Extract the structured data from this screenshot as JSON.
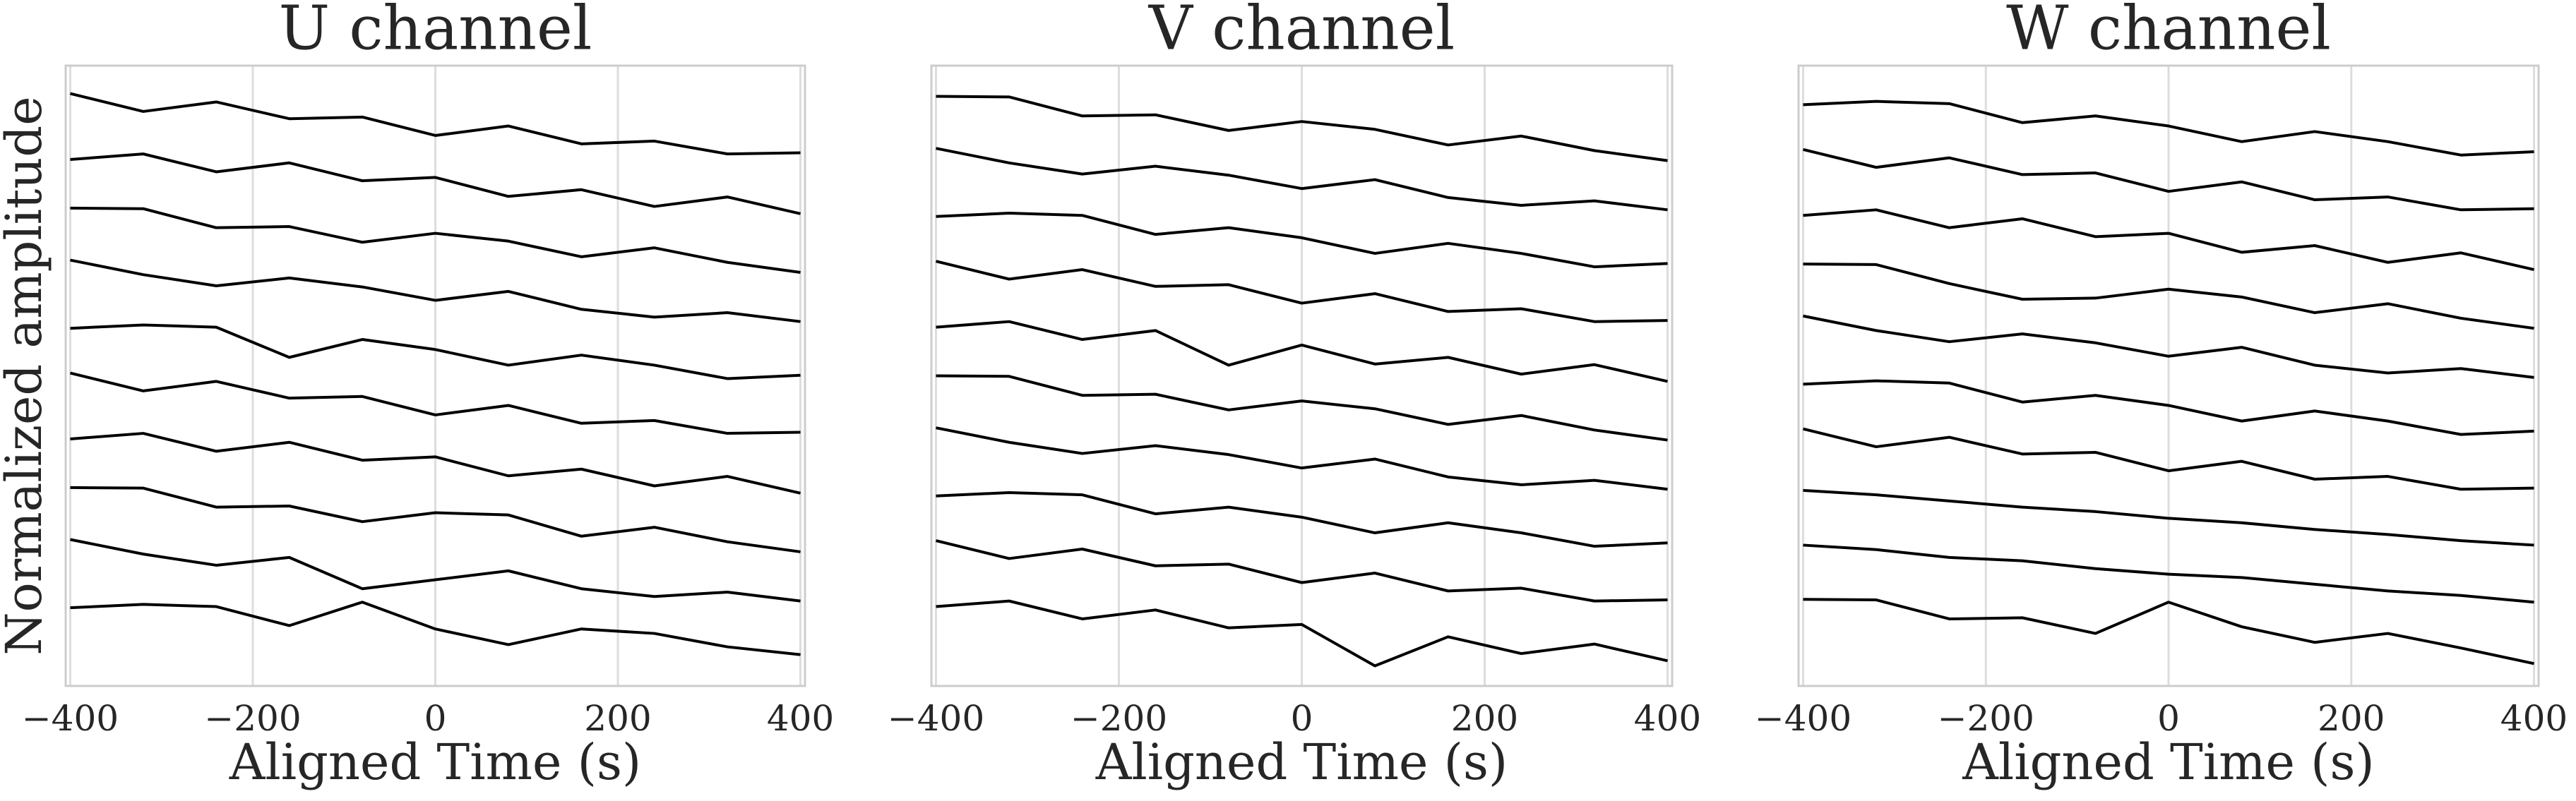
{
  "chart_data": [
    {
      "type": "line",
      "title": "U channel",
      "xlabel": "Aligned Time (s)",
      "ylabel": "Normalized amplitude",
      "x": [
        -400,
        -320,
        -240,
        -160,
        -80,
        0,
        80,
        160,
        240,
        320,
        400
      ],
      "xlim": [
        -405,
        405
      ],
      "ylim": [
        -1.0,
        10.1
      ],
      "xticks": [
        {
          "value": -400,
          "label": "−400"
        },
        {
          "value": -200,
          "label": "−200"
        },
        0,
        200,
        400
      ],
      "grid": true,
      "series": [
        {
          "color": "#000000",
          "values": [
            9.6,
            9.28,
            9.45,
            9.15,
            9.18,
            8.85,
            9.02,
            8.7,
            8.75,
            8.52,
            8.54
          ]
        },
        {
          "color": "#000000",
          "values": [
            8.42,
            8.52,
            8.2,
            8.36,
            8.04,
            8.1,
            7.76,
            7.88,
            7.58,
            7.75,
            7.45
          ]
        },
        {
          "color": "#000000",
          "values": [
            7.55,
            7.54,
            7.2,
            7.22,
            6.94,
            7.1,
            6.96,
            6.68,
            6.84,
            6.58,
            6.4
          ]
        },
        {
          "color": "#000000",
          "values": [
            6.62,
            6.36,
            6.16,
            6.3,
            6.14,
            5.9,
            6.06,
            5.74,
            5.6,
            5.68,
            5.52
          ]
        },
        {
          "color": "#000000",
          "values": [
            5.4,
            5.46,
            5.42,
            4.88,
            5.2,
            5.02,
            4.74,
            4.92,
            4.74,
            4.5,
            4.56
          ]
        },
        {
          "color": "#000000",
          "values": [
            4.6,
            4.28,
            4.45,
            4.15,
            4.18,
            3.85,
            4.02,
            3.7,
            3.75,
            3.52,
            3.54
          ]
        },
        {
          "color": "#000000",
          "values": [
            3.42,
            3.52,
            3.2,
            3.36,
            3.04,
            3.1,
            2.76,
            2.88,
            2.58,
            2.75,
            2.45
          ]
        },
        {
          "color": "#000000",
          "values": [
            2.55,
            2.54,
            2.2,
            2.22,
            1.94,
            2.1,
            2.06,
            1.68,
            1.84,
            1.58,
            1.4
          ]
        },
        {
          "color": "#000000",
          "values": [
            1.62,
            1.36,
            1.16,
            1.3,
            0.74,
            0.9,
            1.06,
            0.74,
            0.6,
            0.68,
            0.52
          ]
        },
        {
          "color": "#000000",
          "values": [
            0.4,
            0.46,
            0.42,
            0.08,
            0.5,
            0.02,
            -0.26,
            0.02,
            -0.06,
            -0.3,
            -0.44
          ]
        }
      ]
    },
    {
      "type": "line",
      "title": "V channel",
      "xlabel": "Aligned Time (s)",
      "x": [
        -400,
        -320,
        -240,
        -160,
        -80,
        0,
        80,
        160,
        240,
        320,
        400
      ],
      "xlim": [
        -405,
        405
      ],
      "ylim": [
        -1.0,
        10.1
      ],
      "xticks": [
        {
          "value": -400,
          "label": "−400"
        },
        {
          "value": -200,
          "label": "−200"
        },
        0,
        200,
        400
      ],
      "grid": true,
      "series": [
        {
          "color": "#000000",
          "values": [
            9.55,
            9.54,
            9.2,
            9.22,
            8.94,
            9.1,
            8.96,
            8.68,
            8.84,
            8.58,
            8.4
          ]
        },
        {
          "color": "#000000",
          "values": [
            8.62,
            8.36,
            8.16,
            8.3,
            8.14,
            7.9,
            8.06,
            7.74,
            7.6,
            7.68,
            7.52
          ]
        },
        {
          "color": "#000000",
          "values": [
            7.4,
            7.46,
            7.42,
            7.08,
            7.2,
            7.02,
            6.74,
            6.92,
            6.74,
            6.5,
            6.56
          ]
        },
        {
          "color": "#000000",
          "values": [
            6.6,
            6.28,
            6.45,
            6.15,
            6.18,
            5.85,
            6.02,
            5.7,
            5.75,
            5.52,
            5.54
          ]
        },
        {
          "color": "#000000",
          "values": [
            5.42,
            5.52,
            5.2,
            5.36,
            4.74,
            5.1,
            4.76,
            4.88,
            4.58,
            4.75,
            4.45
          ]
        },
        {
          "color": "#000000",
          "values": [
            4.55,
            4.54,
            4.2,
            4.22,
            3.94,
            4.1,
            3.96,
            3.68,
            3.84,
            3.58,
            3.4
          ]
        },
        {
          "color": "#000000",
          "values": [
            3.62,
            3.36,
            3.16,
            3.3,
            3.14,
            2.9,
            3.06,
            2.74,
            2.6,
            2.68,
            2.52
          ]
        },
        {
          "color": "#000000",
          "values": [
            2.4,
            2.46,
            2.42,
            2.08,
            2.2,
            2.02,
            1.74,
            1.92,
            1.74,
            1.5,
            1.56
          ]
        },
        {
          "color": "#000000",
          "values": [
            1.6,
            1.28,
            1.45,
            1.15,
            1.18,
            0.85,
            1.02,
            0.7,
            0.75,
            0.52,
            0.54
          ]
        },
        {
          "color": "#000000",
          "values": [
            0.42,
            0.52,
            0.2,
            0.36,
            0.04,
            0.1,
            -0.64,
            -0.12,
            -0.42,
            -0.25,
            -0.55
          ]
        }
      ]
    },
    {
      "type": "line",
      "title": "W channel",
      "xlabel": "Aligned Time (s)",
      "x": [
        -400,
        -320,
        -240,
        -160,
        -80,
        0,
        80,
        160,
        240,
        320,
        400
      ],
      "xlim": [
        -405,
        405
      ],
      "ylim": [
        -1.0,
        10.1
      ],
      "xticks": [
        {
          "value": -400,
          "label": "−400"
        },
        {
          "value": -200,
          "label": "−200"
        },
        0,
        200,
        400
      ],
      "grid": true,
      "series": [
        {
          "color": "#000000",
          "values": [
            9.4,
            9.46,
            9.42,
            9.08,
            9.2,
            9.02,
            8.74,
            8.92,
            8.74,
            8.5,
            8.56
          ]
        },
        {
          "color": "#000000",
          "values": [
            8.6,
            8.28,
            8.45,
            8.15,
            8.18,
            7.85,
            8.02,
            7.7,
            7.75,
            7.52,
            7.54
          ]
        },
        {
          "color": "#000000",
          "values": [
            7.42,
            7.52,
            7.2,
            7.36,
            7.04,
            7.1,
            6.76,
            6.88,
            6.58,
            6.75,
            6.45
          ]
        },
        {
          "color": "#000000",
          "values": [
            6.55,
            6.54,
            6.2,
            5.92,
            5.94,
            6.1,
            5.96,
            5.68,
            5.84,
            5.58,
            5.4
          ]
        },
        {
          "color": "#000000",
          "values": [
            5.62,
            5.36,
            5.16,
            5.3,
            5.14,
            4.9,
            5.06,
            4.74,
            4.6,
            4.68,
            4.52
          ]
        },
        {
          "color": "#000000",
          "values": [
            4.4,
            4.46,
            4.42,
            4.08,
            4.2,
            4.02,
            3.74,
            3.92,
            3.74,
            3.5,
            3.56
          ]
        },
        {
          "color": "#000000",
          "values": [
            3.6,
            3.28,
            3.45,
            3.15,
            3.18,
            2.85,
            3.02,
            2.7,
            2.75,
            2.52,
            2.54
          ]
        },
        {
          "color": "#000000",
          "values": [
            2.5,
            2.42,
            2.31,
            2.2,
            2.12,
            2.0,
            1.92,
            1.8,
            1.71,
            1.6,
            1.52
          ]
        },
        {
          "color": "#000000",
          "values": [
            1.52,
            1.44,
            1.3,
            1.24,
            1.1,
            1.0,
            0.94,
            0.82,
            0.7,
            0.62,
            0.5
          ]
        },
        {
          "color": "#000000",
          "values": [
            0.55,
            0.54,
            0.2,
            0.22,
            -0.06,
            0.5,
            0.06,
            -0.22,
            -0.06,
            -0.32,
            -0.6
          ]
        }
      ]
    }
  ]
}
